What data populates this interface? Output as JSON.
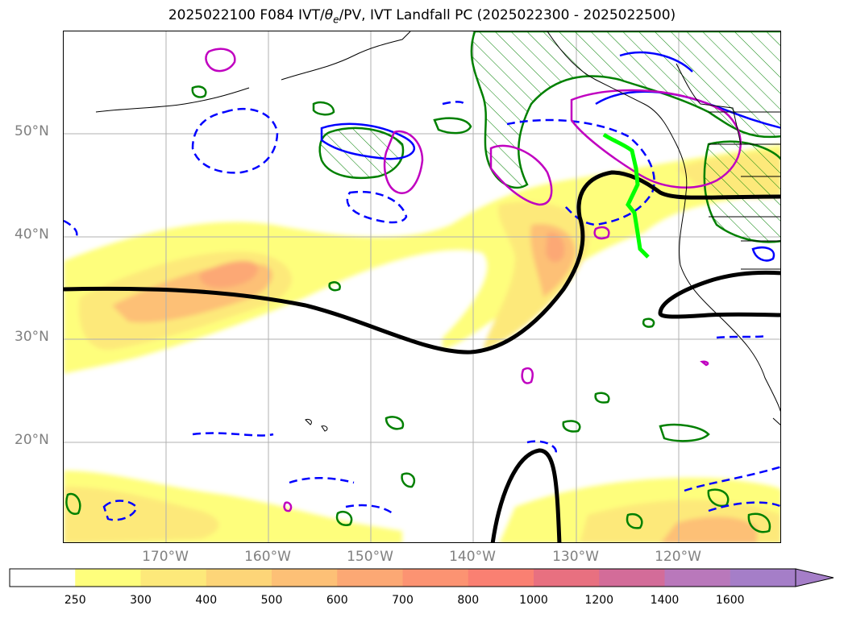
{
  "title_prefix": "2025022100 F084 IVT/",
  "title_theta": "θ",
  "title_sub": "e",
  "title_suffix": "/PV, IVT Landfall PC (2025022300 - 2025022500)",
  "lat_labels": [
    "50°N",
    "40°N",
    "30°N",
    "20°N"
  ],
  "lon_labels": [
    "170°W",
    "160°W",
    "150°W",
    "140°W",
    "130°W",
    "120°W"
  ],
  "colorbar": {
    "levels": [
      "250",
      "300",
      "400",
      "500",
      "600",
      "700",
      "800",
      "1000",
      "1200",
      "1400",
      "1600"
    ],
    "colors": [
      "#fefe7c",
      "#fde97a",
      "#fdd578",
      "#fdc076",
      "#fca874",
      "#fc9372",
      "#fa8072",
      "#e87080",
      "#d36c99",
      "#b978bb",
      "#a57ec8"
    ],
    "extend": "max"
  },
  "legend_colors": {
    "ivt_fill": "#fde97a",
    "theta_e": "#0000ff",
    "pv": "#008000",
    "pc": "#ff00ff",
    "landfall": "#00ff00",
    "mean": "#000000"
  }
}
